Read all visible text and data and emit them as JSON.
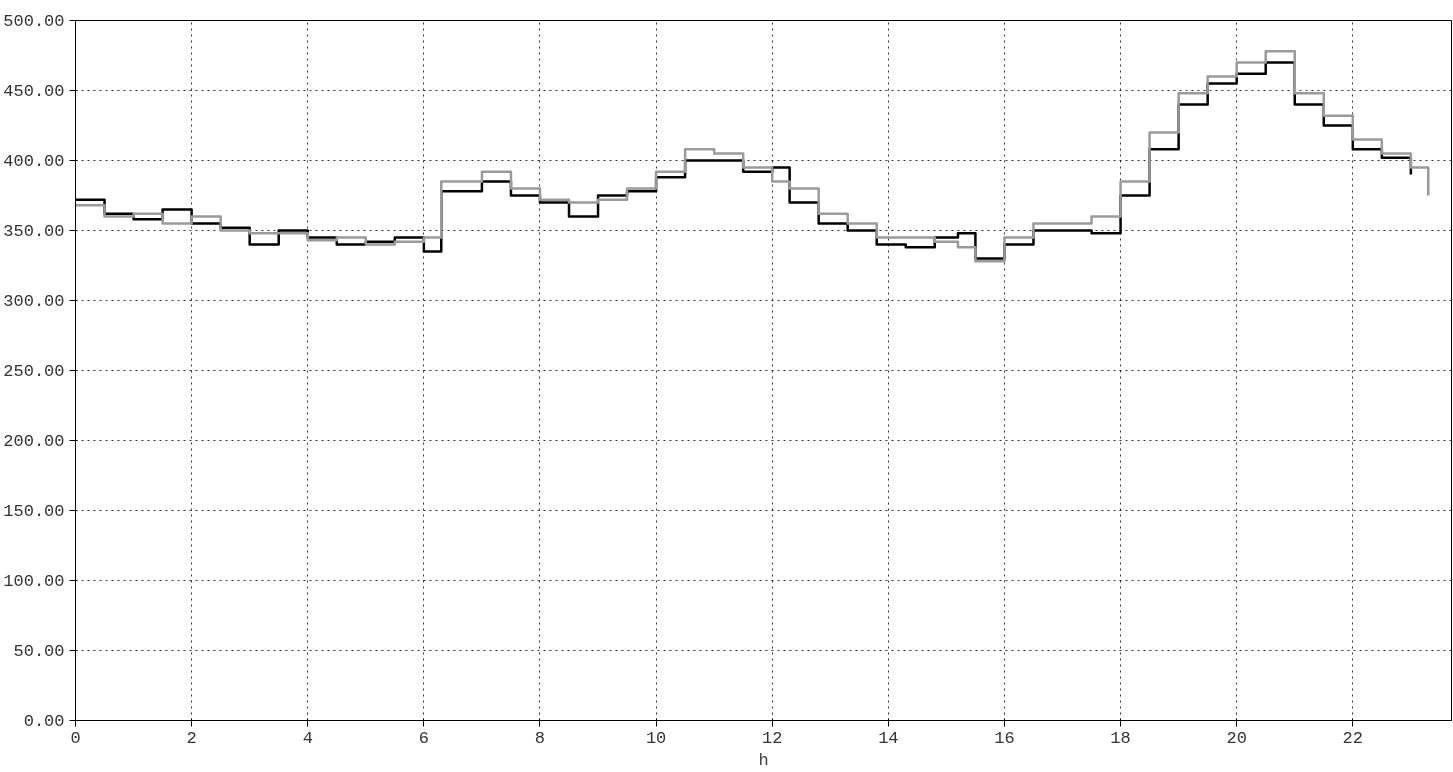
{
  "chart_data": {
    "type": "step",
    "xlabel": "h",
    "series": [
      {
        "color": "#000000",
        "x": [
          0,
          0.5,
          1,
          1.5,
          2,
          2.5,
          3,
          3.5,
          4,
          4.5,
          5,
          5.5,
          6,
          6.3,
          7,
          7.5,
          8,
          8.5,
          9,
          9.5,
          10,
          10.5,
          11,
          11.5,
          12,
          12.3,
          12.8,
          13.3,
          13.8,
          14.3,
          14.8,
          15.2,
          15.5,
          16,
          16.5,
          17,
          17.5,
          18,
          18.5,
          19,
          19.5,
          20,
          20.5,
          21,
          21.5,
          22,
          22.5,
          23
        ],
        "values": [
          372,
          362,
          358,
          365,
          355,
          352,
          340,
          350,
          345,
          340,
          342,
          345,
          335,
          378,
          385,
          375,
          370,
          360,
          375,
          378,
          388,
          400,
          400,
          392,
          395,
          370,
          355,
          350,
          340,
          338,
          345,
          348,
          330,
          340,
          350,
          350,
          348,
          375,
          408,
          440,
          455,
          462,
          470,
          440,
          425,
          408,
          402,
          390
        ]
      },
      {
        "color": "#9a9a9a",
        "x": [
          0,
          0.5,
          1,
          1.5,
          2,
          2.5,
          3,
          3.5,
          4,
          4.5,
          5,
          5.5,
          6,
          6.3,
          7,
          7.5,
          8,
          8.5,
          9,
          9.5,
          10,
          10.5,
          11,
          11.5,
          12,
          12.3,
          12.8,
          13.3,
          13.8,
          14.3,
          14.8,
          15.2,
          15.5,
          16,
          16.5,
          17,
          17.5,
          18,
          18.5,
          19,
          19.5,
          20,
          20.5,
          21,
          21.5,
          22,
          22.5,
          23,
          23.3
        ],
        "values": [
          368,
          360,
          362,
          355,
          360,
          350,
          348,
          348,
          343,
          345,
          340,
          342,
          345,
          385,
          392,
          380,
          372,
          370,
          372,
          380,
          392,
          408,
          405,
          395,
          385,
          380,
          362,
          355,
          345,
          345,
          342,
          338,
          328,
          345,
          355,
          355,
          360,
          385,
          420,
          448,
          460,
          470,
          478,
          448,
          432,
          415,
          405,
          395,
          375
        ]
      }
    ],
    "xlim": [
      0,
      23.7
    ],
    "xticks": [
      0,
      2,
      4,
      6,
      8,
      10,
      12,
      14,
      16,
      18,
      20,
      22
    ],
    "ylim": [
      0,
      500
    ],
    "yticks": [
      {
        "value": 0,
        "label": "0.00"
      },
      {
        "value": 50,
        "label": "50.00"
      },
      {
        "value": 100,
        "label": "100.00"
      },
      {
        "value": 150,
        "label": "150.00"
      },
      {
        "value": 200,
        "label": "200.00"
      },
      {
        "value": 250,
        "label": "250.00"
      },
      {
        "value": 300,
        "label": "300.00"
      },
      {
        "value": 350,
        "label": "350.00"
      },
      {
        "value": 400,
        "label": "400.00"
      },
      {
        "value": 450,
        "label": "450.00"
      },
      {
        "value": 500,
        "label": "500.00"
      }
    ],
    "grid": true,
    "line_style": "solid"
  }
}
